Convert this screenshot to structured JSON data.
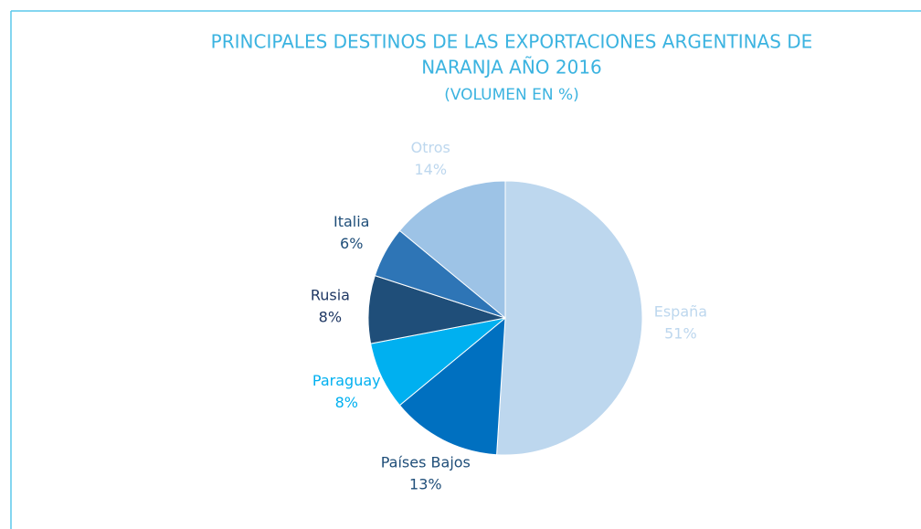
{
  "chart_data": {
    "type": "pie",
    "title": [
      "PRINCIPALES DESTINOS DE LAS EXPORTACIONES ARGENTINAS  DE",
      "NARANJA AÑO 2016"
    ],
    "subtitle": "(VOLUMEN EN %)",
    "categories": [
      "España",
      "Países Bajos",
      "Paraguay",
      "Rusia",
      "Italia",
      "Otros"
    ],
    "values": [
      51,
      13,
      8,
      8,
      6,
      14
    ],
    "value_labels": [
      "51%",
      "13%",
      "8%",
      "8%",
      "6%",
      "14%"
    ],
    "colors": [
      "#bdd7ee",
      "#0070c0",
      "#00b0f0",
      "#1f4e79",
      "#2e75b6",
      "#9dc3e6"
    ],
    "label_colors": [
      "#bdd7ee",
      "#1f4e79",
      "#00b0f0",
      "#1f3864",
      "#1f4e79",
      "#bdd7ee"
    ]
  }
}
